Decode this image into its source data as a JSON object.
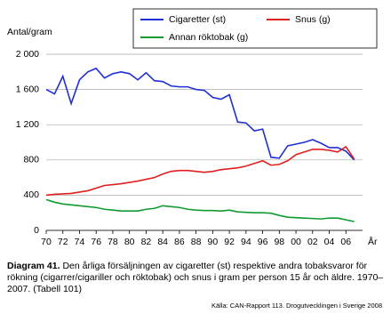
{
  "chart_data": {
    "type": "line",
    "y_axis_label": "Antal/gram",
    "x_axis_label": "År",
    "x": [
      1970,
      1971,
      1972,
      1973,
      1974,
      1975,
      1976,
      1977,
      1978,
      1979,
      1980,
      1981,
      1982,
      1983,
      1984,
      1985,
      1986,
      1987,
      1988,
      1989,
      1990,
      1991,
      1992,
      1993,
      1994,
      1995,
      1996,
      1997,
      1998,
      1999,
      2000,
      2001,
      2002,
      2003,
      2004,
      2005,
      2006,
      2007
    ],
    "series": [
      {
        "name": "Cigaretter (st)",
        "color": "#1f2fd6",
        "values": [
          1600,
          1550,
          1750,
          1440,
          1710,
          1800,
          1840,
          1730,
          1780,
          1800,
          1780,
          1710,
          1790,
          1700,
          1690,
          1640,
          1630,
          1630,
          1600,
          1590,
          1510,
          1490,
          1540,
          1230,
          1220,
          1130,
          1150,
          830,
          820,
          960,
          980,
          1000,
          1030,
          990,
          940,
          940,
          900,
          800
        ]
      },
      {
        "name": "Snus (g)",
        "color": "#e02020",
        "values": [
          400,
          410,
          415,
          420,
          435,
          450,
          480,
          510,
          520,
          530,
          545,
          560,
          580,
          600,
          640,
          670,
          680,
          680,
          670,
          660,
          670,
          690,
          700,
          710,
          730,
          760,
          790,
          740,
          750,
          790,
          860,
          890,
          920,
          920,
          910,
          890,
          950,
          810
        ]
      },
      {
        "name": "Annan röktobak (g)",
        "color": "#109a30",
        "values": [
          350,
          320,
          300,
          290,
          280,
          270,
          260,
          240,
          230,
          220,
          220,
          220,
          240,
          250,
          280,
          270,
          260,
          240,
          230,
          225,
          225,
          220,
          230,
          210,
          205,
          200,
          200,
          195,
          170,
          150,
          145,
          140,
          135,
          130,
          140,
          140,
          120,
          100
        ]
      }
    ],
    "xlim": [
      1970,
      2008
    ],
    "xticks": [
      {
        "value": 1970,
        "label": "70"
      },
      {
        "value": 1972,
        "label": "72"
      },
      {
        "value": 1974,
        "label": "74"
      },
      {
        "value": 1976,
        "label": "76"
      },
      {
        "value": 1978,
        "label": "78"
      },
      {
        "value": 1980,
        "label": "80"
      },
      {
        "value": 1982,
        "label": "82"
      },
      {
        "value": 1984,
        "label": "84"
      },
      {
        "value": 1986,
        "label": "86"
      },
      {
        "value": 1988,
        "label": "88"
      },
      {
        "value": 1990,
        "label": "90"
      },
      {
        "value": 1992,
        "label": "92"
      },
      {
        "value": 1994,
        "label": "94"
      },
      {
        "value": 1996,
        "label": "96"
      },
      {
        "value": 1998,
        "label": "98"
      },
      {
        "value": 2000,
        "label": "00"
      },
      {
        "value": 2002,
        "label": "02"
      },
      {
        "value": 2004,
        "label": "04"
      },
      {
        "value": 2006,
        "label": "06"
      }
    ],
    "ylim": [
      0,
      2000
    ],
    "yticks": [
      0,
      400,
      800,
      {
        "value": 1200,
        "label": "1 200"
      },
      {
        "value": 1600,
        "label": "1 600"
      },
      {
        "value": 2000,
        "label": "2 000"
      }
    ],
    "grid": true
  },
  "caption": {
    "label": "Diagram 41.",
    "text": "Den årliga försäljningen av cigaretter (st) respektive andra tobaksvaror för rökning (cigarrer/cigariller och röktobak) och snus i gram per person 15 år och äldre. 1970–2007. (Tabell 101)"
  },
  "source": "Källa: CAN-Rapport 113. Drogutvecklingen i Sverige 2008"
}
